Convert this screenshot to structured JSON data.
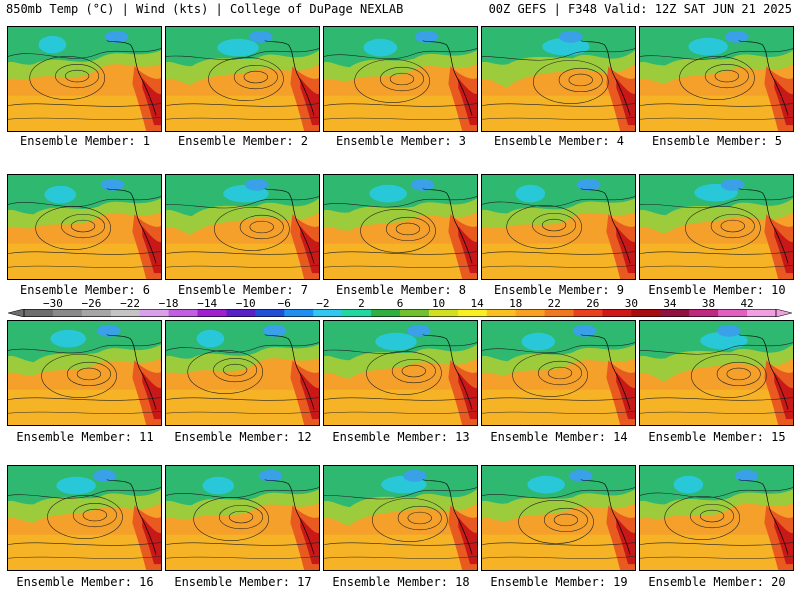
{
  "header": {
    "left": "850mb Temp (°C) | Wind (kts) | College of DuPage NEXLAB",
    "right": "00Z GEFS | F348 Valid: 12Z SAT JUN 21 2025"
  },
  "members": [
    {
      "label": "Ensemble Member: 1"
    },
    {
      "label": "Ensemble Member: 2"
    },
    {
      "label": "Ensemble Member: 3"
    },
    {
      "label": "Ensemble Member: 4"
    },
    {
      "label": "Ensemble Member: 5"
    },
    {
      "label": "Ensemble Member: 6"
    },
    {
      "label": "Ensemble Member: 7"
    },
    {
      "label": "Ensemble Member: 8"
    },
    {
      "label": "Ensemble Member: 9"
    },
    {
      "label": "Ensemble Member: 10"
    },
    {
      "label": "Ensemble Member: 11"
    },
    {
      "label": "Ensemble Member: 12"
    },
    {
      "label": "Ensemble Member: 13"
    },
    {
      "label": "Ensemble Member: 14"
    },
    {
      "label": "Ensemble Member: 15"
    },
    {
      "label": "Ensemble Member: 16"
    },
    {
      "label": "Ensemble Member: 17"
    },
    {
      "label": "Ensemble Member: 18"
    },
    {
      "label": "Ensemble Member: 19"
    },
    {
      "label": "Ensemble Member: 20"
    }
  ],
  "colorbar": {
    "ticks": [
      "−30",
      "−26",
      "−22",
      "−18",
      "−14",
      "−10",
      "−6",
      "−2",
      "2",
      "6",
      "10",
      "14",
      "18",
      "22",
      "26",
      "30",
      "34",
      "38",
      "42"
    ],
    "colors": [
      "#6e6e6e",
      "#8a8a8a",
      "#a6a6a6",
      "#c4c4c4",
      "#d8a0e8",
      "#c060e0",
      "#a020d0",
      "#5a20c8",
      "#2050d8",
      "#2090f0",
      "#30c8f0",
      "#20d8a0",
      "#30b040",
      "#70c030",
      "#d0e020",
      "#f8f020",
      "#f8c020",
      "#f8a020",
      "#f07820",
      "#e84020",
      "#d01818",
      "#a80c10",
      "#901040",
      "#c02880",
      "#e060c0",
      "#f0a0e0"
    ]
  }
}
